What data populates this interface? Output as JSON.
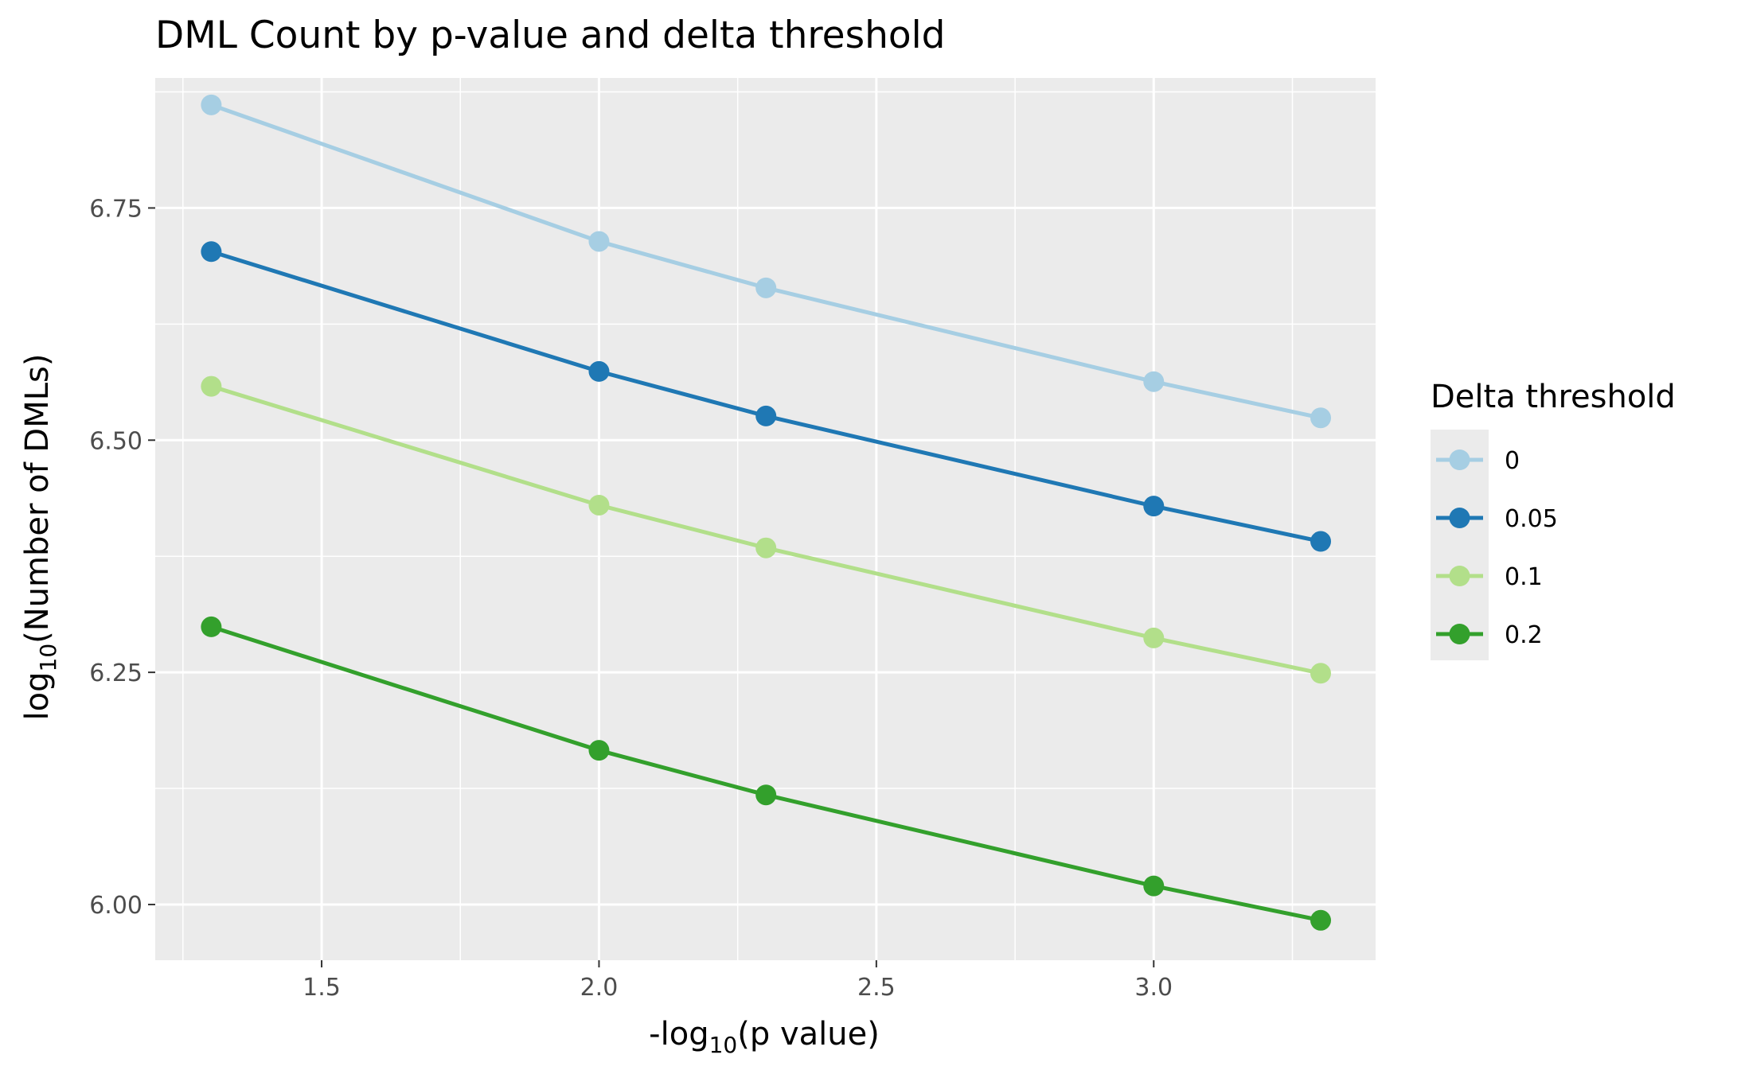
{
  "chart_data": {
    "type": "line",
    "title": "DML Count by p-value and delta threshold",
    "xlabel": {
      "prefix": "-log",
      "sub": "10",
      "suffix": "(p value)"
    },
    "ylabel": {
      "prefix": "log",
      "sub": "10",
      "suffix": "(Number of DMLs)"
    },
    "x": [
      1.301,
      2.0,
      2.301,
      3.0,
      3.301
    ],
    "xlim": [
      1.2,
      3.4
    ],
    "ylim": [
      5.94,
      6.89
    ],
    "xticks": [
      1.5,
      2.0,
      2.5,
      3.0
    ],
    "xtick_labels": [
      "1.5",
      "2.0",
      "2.5",
      "3.0"
    ],
    "yticks": [
      6.0,
      6.25,
      6.5,
      6.75
    ],
    "ytick_labels": [
      "6.00",
      "6.25",
      "6.50",
      "6.75"
    ],
    "grid": true,
    "legend": {
      "title": "Delta threshold",
      "position": "right"
    },
    "series": [
      {
        "name": "0",
        "color": "#A6CEE3",
        "values": [
          6.861,
          6.714,
          6.664,
          6.563,
          6.524
        ]
      },
      {
        "name": "0.05",
        "color": "#1F78B4",
        "values": [
          6.703,
          6.574,
          6.526,
          6.429,
          6.391
        ]
      },
      {
        "name": "0.1",
        "color": "#B2DF8A",
        "values": [
          6.558,
          6.43,
          6.384,
          6.287,
          6.249
        ]
      },
      {
        "name": "0.2",
        "color": "#33A02C",
        "values": [
          6.299,
          6.166,
          6.118,
          6.02,
          5.983
        ]
      }
    ]
  }
}
